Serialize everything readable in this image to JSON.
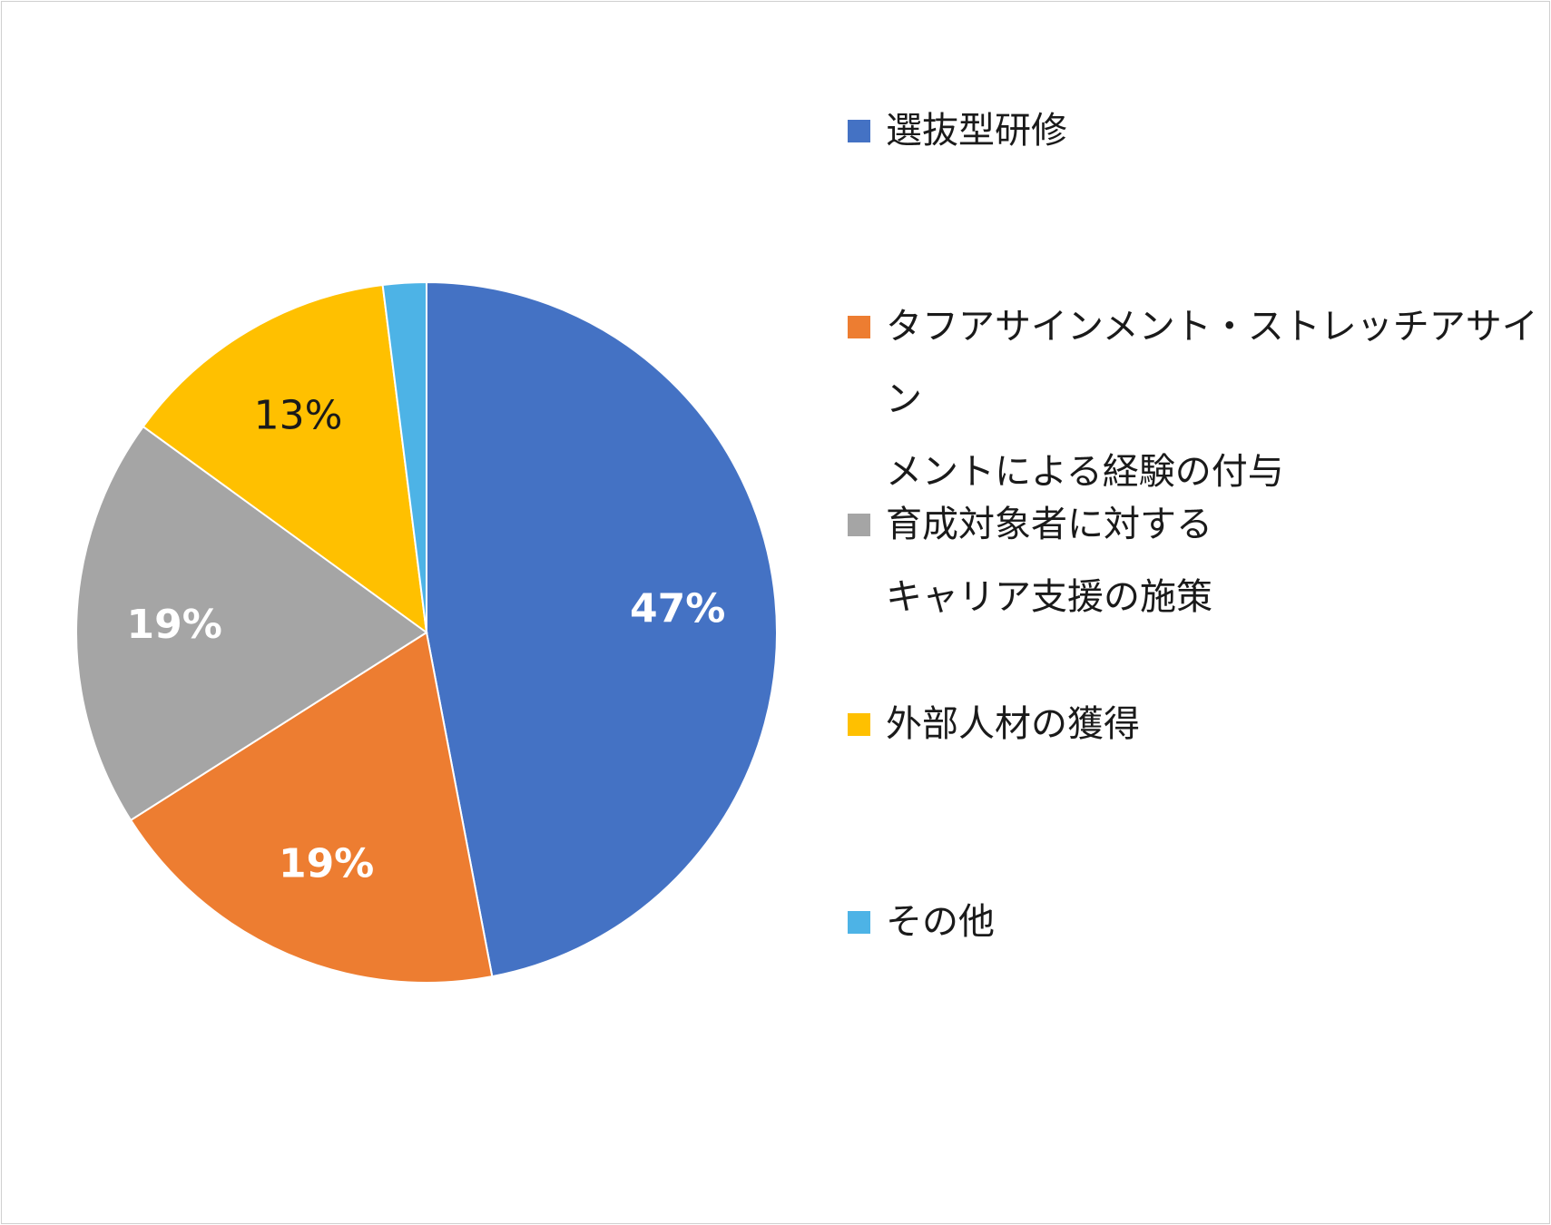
{
  "chart_data": {
    "type": "pie",
    "start_angle_deg": 0,
    "direction": "clockwise",
    "slices": [
      {
        "label": "選抜型研修",
        "value": 47,
        "data_label": "47%",
        "color": "#4472C4",
        "label_color": "#ffffff"
      },
      {
        "label": "タフアサインメント・ストレッチアサインメントによる経験の付与",
        "value": 19,
        "data_label": "19%",
        "color": "#ED7D31",
        "label_color": "#ffffff"
      },
      {
        "label": "育成対象者に対するキャリア支援の施策",
        "value": 19,
        "data_label": "19%",
        "color": "#A5A5A5",
        "label_color": "#ffffff"
      },
      {
        "label": "外部人材の獲得",
        "value": 13,
        "data_label": "13%",
        "color": "#FFC000",
        "label_color": "#1a1a1a"
      },
      {
        "label": "その他",
        "value": 2,
        "data_label": "",
        "color": "#4DB3E6",
        "label_color": "#ffffff"
      }
    ],
    "legend": {
      "placement": "right",
      "items": [
        {
          "text": "選抜型研修",
          "color": "#4472C4"
        },
        {
          "text": "タフアサインメント・ストレッチアサイン\nメントによる経験の付与",
          "color": "#ED7D31"
        },
        {
          "text": "育成対象者に対する\nキャリア支援の施策",
          "color": "#A5A5A5"
        },
        {
          "text": "外部人材の獲得",
          "color": "#FFC000"
        },
        {
          "text": "その他",
          "color": "#4DB3E6"
        }
      ]
    }
  }
}
